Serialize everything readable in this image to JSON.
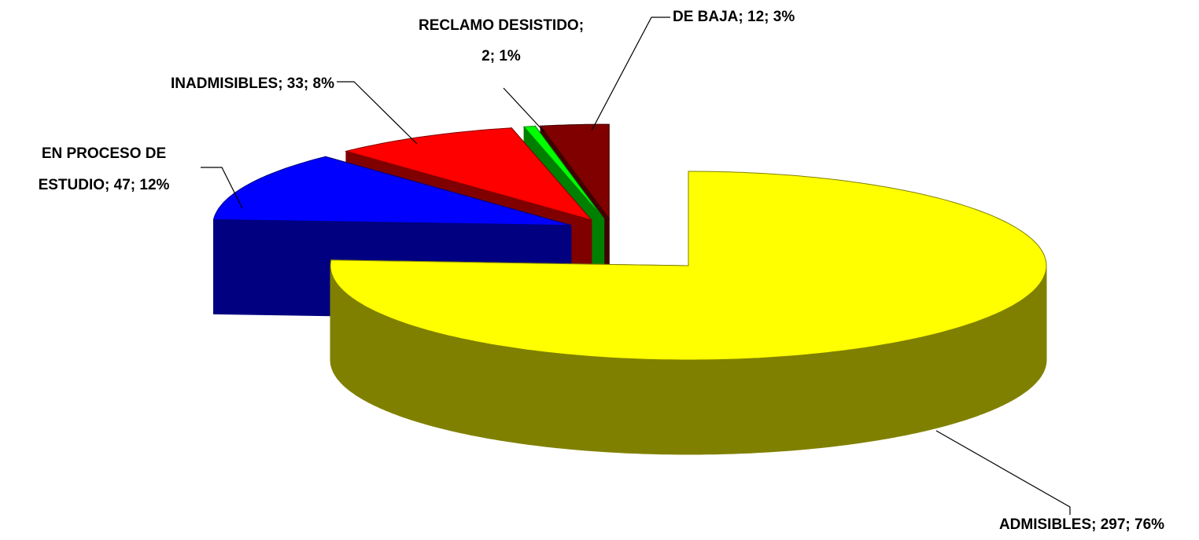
{
  "chart_data": {
    "type": "pie3d",
    "values": [
      297,
      47,
      33,
      2,
      12
    ],
    "value_labels": [
      [
        "ADMISIBLES; 297; 76%"
      ],
      [
        "EN PROCESO DE",
        "ESTUDIO; 47; 12%"
      ],
      [
        "INADMISIBLES; 33; 8%"
      ],
      [
        "RECLAMO DESISTIDO;",
        "2; 1%"
      ],
      [
        "DE BAJA; 12; 3%"
      ]
    ],
    "colors": [
      "#ffff00",
      "#0000ff",
      "#ff0000",
      "#00ff00",
      "#800000"
    ]
  }
}
